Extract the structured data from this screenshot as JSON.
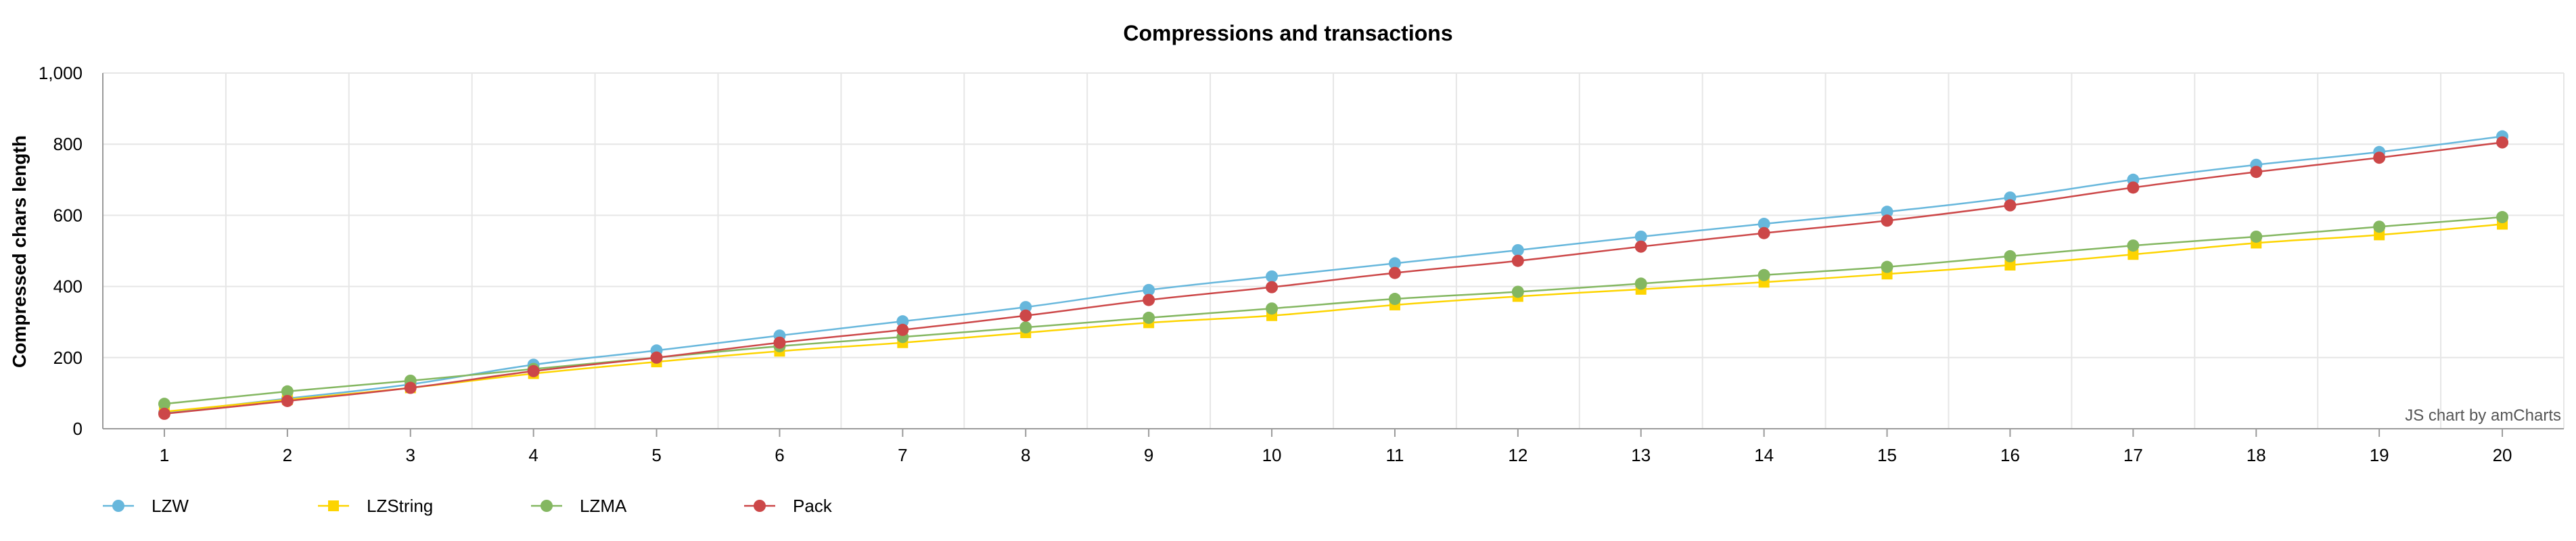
{
  "chart_data": {
    "type": "line",
    "title": "Compressions and transactions",
    "xlabel": "",
    "ylabel": "Compressed chars length",
    "ylim": [
      0,
      1000
    ],
    "yticks": [
      "0",
      "200",
      "400",
      "600",
      "800",
      "1,000"
    ],
    "categories": [
      "1",
      "2",
      "3",
      "4",
      "5",
      "6",
      "7",
      "8",
      "9",
      "10",
      "11",
      "12",
      "13",
      "14",
      "15",
      "16",
      "17",
      "18",
      "19",
      "20"
    ],
    "grid": true,
    "legend_position": "bottom-left",
    "credit": "JS chart by amCharts",
    "series": [
      {
        "name": "LZW",
        "color": "#67b7dc",
        "marker": "circle",
        "values": [
          45,
          85,
          125,
          180,
          220,
          262,
          302,
          342,
          390,
          428,
          465,
          502,
          540,
          576,
          610,
          650,
          700,
          742,
          778,
          822
        ]
      },
      {
        "name": "LZString",
        "color": "#fdd400",
        "marker": "square",
        "values": [
          48,
          82,
          115,
          155,
          188,
          218,
          242,
          270,
          298,
          318,
          348,
          372,
          392,
          412,
          435,
          460,
          490,
          522,
          545,
          575
        ]
      },
      {
        "name": "LZMA",
        "color": "#84b761",
        "marker": "circle",
        "values": [
          70,
          105,
          135,
          168,
          200,
          232,
          258,
          285,
          312,
          338,
          365,
          385,
          408,
          432,
          455,
          485,
          515,
          540,
          568,
          595
        ]
      },
      {
        "name": "Pack",
        "color": "#cc4748",
        "marker": "circle",
        "values": [
          42,
          78,
          115,
          162,
          200,
          242,
          278,
          318,
          362,
          398,
          438,
          472,
          512,
          550,
          585,
          628,
          678,
          722,
          762,
          805
        ]
      }
    ]
  }
}
